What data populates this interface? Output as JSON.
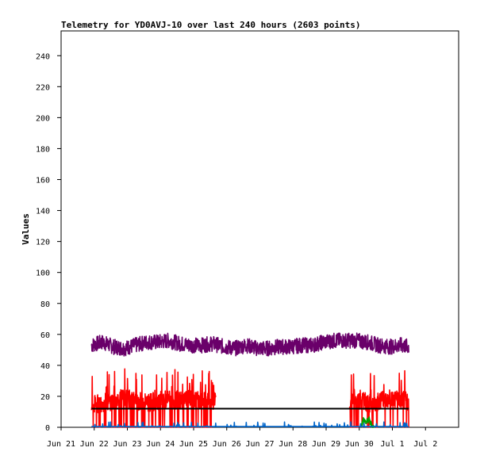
{
  "chart_data": {
    "type": "line",
    "title": "Telemetry for YD0AVJ-10 over last 240 hours (2603 points)",
    "xlabel": "",
    "ylabel": "Values",
    "ylim": [
      0,
      256
    ],
    "xlim": [
      0,
      240
    ],
    "yticks": [
      0,
      20,
      40,
      60,
      80,
      100,
      120,
      140,
      160,
      180,
      200,
      220,
      240
    ],
    "xticks": [
      {
        "label": "Jun 21",
        "hour": 0
      },
      {
        "label": "Jun 22",
        "hour": 24
      },
      {
        "label": "Jun 23",
        "hour": 48
      },
      {
        "label": "Jun 24",
        "hour": 72
      },
      {
        "label": "Jun 25",
        "hour": 96
      },
      {
        "label": "Jun 26",
        "hour": 120
      },
      {
        "label": "Jun 27",
        "hour": 144
      },
      {
        "label": "Jun 28",
        "hour": 168
      },
      {
        "label": "Jun 29",
        "hour": 192
      },
      {
        "label": "Jun 30",
        "hour": 216
      },
      {
        "label": "Jul 1",
        "hour": 240
      },
      {
        "label": "Jul 2",
        "hour": 264
      }
    ],
    "grid": false,
    "legend": "none",
    "series": [
      {
        "color": "#6a006a",
        "style": "noisy",
        "segments": [
          [
            22,
            252
          ]
        ],
        "points": [
          [
            22,
            53
          ],
          [
            30,
            55
          ],
          [
            38,
            52
          ],
          [
            46,
            51
          ],
          [
            54,
            53
          ],
          [
            62,
            55
          ],
          [
            70,
            55
          ],
          [
            78,
            56
          ],
          [
            86,
            54
          ],
          [
            94,
            53
          ],
          [
            102,
            53
          ],
          [
            110,
            54
          ],
          [
            118,
            52
          ],
          [
            126,
            51
          ],
          [
            134,
            53
          ],
          [
            142,
            51
          ],
          [
            150,
            51
          ],
          [
            158,
            52
          ],
          [
            166,
            52
          ],
          [
            174,
            53
          ],
          [
            182,
            53
          ],
          [
            190,
            55
          ],
          [
            198,
            56
          ],
          [
            206,
            56
          ],
          [
            214,
            56
          ],
          [
            222,
            55
          ],
          [
            230,
            53
          ],
          [
            238,
            52
          ],
          [
            246,
            53
          ],
          [
            252,
            52
          ]
        ],
        "jitter": 5
      },
      {
        "color": "#ff0000",
        "style": "spiky",
        "segments": [
          [
            22,
            112
          ],
          [
            209,
            252
          ]
        ],
        "points": [
          [
            22,
            14
          ],
          [
            30,
            16
          ],
          [
            38,
            17
          ],
          [
            46,
            19
          ],
          [
            54,
            17
          ],
          [
            62,
            16
          ],
          [
            70,
            17
          ],
          [
            78,
            18
          ],
          [
            86,
            17
          ],
          [
            94,
            18
          ],
          [
            102,
            17
          ],
          [
            112,
            17
          ],
          [
            209,
            16
          ],
          [
            218,
            17
          ],
          [
            226,
            15
          ],
          [
            234,
            19
          ],
          [
            242,
            18
          ],
          [
            252,
            17
          ]
        ],
        "jitter": 10
      },
      {
        "color": "#000000",
        "style": "flat",
        "segments": [
          [
            22,
            252
          ]
        ],
        "points": [
          [
            22,
            12
          ],
          [
            252,
            12
          ]
        ],
        "jitter": 0
      },
      {
        "color": "#00a000",
        "style": "bursts",
        "segments": [
          [
            217,
            227
          ]
        ],
        "points": [
          [
            217,
            0
          ],
          [
            219,
            5
          ],
          [
            221,
            3
          ],
          [
            223,
            5
          ],
          [
            225,
            1
          ],
          [
            227,
            0
          ]
        ],
        "jitter": 2
      },
      {
        "color": "#0066cc",
        "style": "baseline",
        "segments": [
          [
            22,
            252
          ]
        ],
        "points": [
          [
            22,
            0.5
          ],
          [
            252,
            0.5
          ]
        ],
        "jitter": 0.6
      }
    ]
  }
}
